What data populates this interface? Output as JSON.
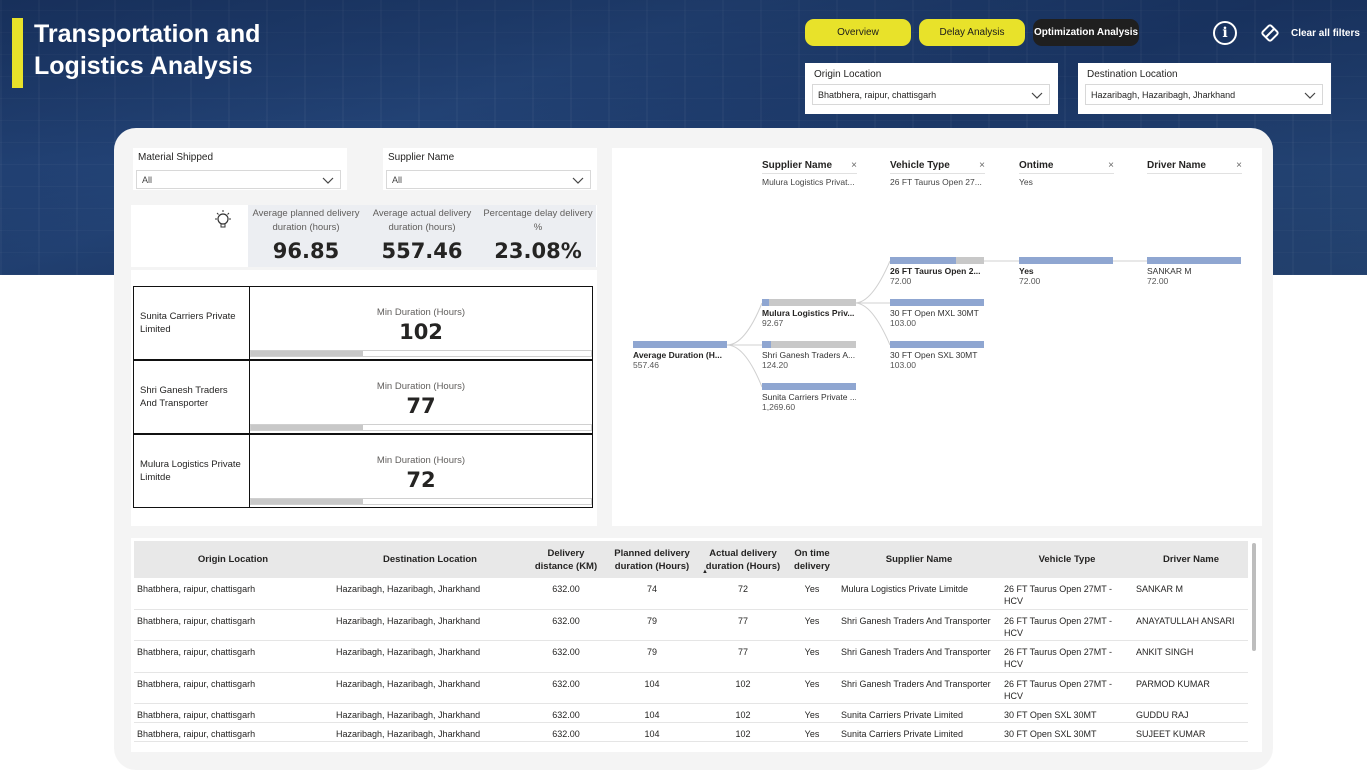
{
  "header": {
    "title_line1": "Transportation and",
    "title_line2": "Logistics Analysis",
    "nav": {
      "overview": "Overview",
      "delay": "Delay Analysis",
      "optimization": "Optimization Analysis"
    },
    "clear_filters": "Clear all filters",
    "accent_color": "#e8e22a"
  },
  "filters": {
    "origin": {
      "label": "Origin Location",
      "value": "Bhatbhera, raipur, chattisgarh"
    },
    "destination": {
      "label": "Destination Location",
      "value": "Hazaribagh, Hazaribagh, Jharkhand"
    },
    "material": {
      "label": "Material Shipped",
      "value": "All"
    },
    "supplier": {
      "label": "Supplier Name",
      "value": "All"
    }
  },
  "kpis": [
    {
      "label": "Average planned delivery duration (hours)",
      "value": "96.85"
    },
    {
      "label": "Average actual delivery duration (hours)",
      "value": "557.46"
    },
    {
      "label": "Percentage delay delivery %",
      "value": "23.08%"
    }
  ],
  "supplier_cards": {
    "metric_label": "Min Duration (Hours)",
    "items": [
      {
        "name": "Sunita Carriers Private Limited",
        "value": "102",
        "fill": 0.33
      },
      {
        "name": "Shri Ganesh Traders And Transporter",
        "value": "77",
        "fill": 0.33
      },
      {
        "name": "Mulura Logistics Private Limitde",
        "value": "72",
        "fill": 0.33
      }
    ]
  },
  "decomposition_tree": {
    "levels": [
      {
        "title": "Supplier Name",
        "selected": "Mulura Logistics Privat..."
      },
      {
        "title": "Vehicle Type",
        "selected": "26 FT Taurus Open 27..."
      },
      {
        "title": "Ontime",
        "selected": "Yes"
      },
      {
        "title": "Driver Name",
        "selected": ""
      }
    ],
    "root": {
      "label": "Average Duration (H...",
      "value": "557.46",
      "fill": 1.0
    },
    "suppliers": [
      {
        "label": "Mulura Logistics Priv...",
        "value": "92.67",
        "fill": 0.07
      },
      {
        "label": "Shri Ganesh Traders A...",
        "value": "124.20",
        "fill": 0.1
      },
      {
        "label": "Sunita Carriers Private ...",
        "value": "1,269.60",
        "fill": 1.0
      }
    ],
    "vehicles": [
      {
        "label": "26 FT Taurus Open 2...",
        "value": "72.00",
        "fill": 0.7
      },
      {
        "label": "30 FT Open MXL 30MT",
        "value": "103.00",
        "fill": 1.0
      },
      {
        "label": "30 FT Open SXL 30MT",
        "value": "103.00",
        "fill": 1.0
      }
    ],
    "ontime": [
      {
        "label": "Yes",
        "value": "72.00",
        "fill": 1.0
      }
    ],
    "drivers": [
      {
        "label": "SANKAR M",
        "value": "72.00",
        "fill": 1.0
      }
    ],
    "close_glyph": "×"
  },
  "table": {
    "columns": [
      "Origin Location",
      "Destination Location",
      "Delivery distance (KM)",
      "Planned delivery duration (Hours)",
      "Actual delivery duration (Hours)",
      "On time delivery",
      "Supplier Name",
      "Vehicle Type",
      "Driver Name"
    ],
    "rows": [
      [
        "Bhatbhera, raipur, chattisgarh",
        "Hazaribagh, Hazaribagh, Jharkhand",
        "632.00",
        "74",
        "72",
        "Yes",
        "Mulura Logistics Private Limitde",
        "26 FT Taurus Open 27MT - HCV",
        "SANKAR M"
      ],
      [
        "Bhatbhera, raipur, chattisgarh",
        "Hazaribagh, Hazaribagh, Jharkhand",
        "632.00",
        "79",
        "77",
        "Yes",
        "Shri Ganesh Traders And Transporter",
        "26 FT Taurus Open 27MT - HCV",
        "ANAYATULLAH ANSARI"
      ],
      [
        "Bhatbhera, raipur, chattisgarh",
        "Hazaribagh, Hazaribagh, Jharkhand",
        "632.00",
        "79",
        "77",
        "Yes",
        "Shri Ganesh Traders And Transporter",
        "26 FT Taurus Open 27MT - HCV",
        "ANKIT SINGH"
      ],
      [
        "Bhatbhera, raipur, chattisgarh",
        "Hazaribagh, Hazaribagh, Jharkhand",
        "632.00",
        "104",
        "102",
        "Yes",
        "Shri Ganesh Traders And Transporter",
        "26 FT Taurus Open 27MT - HCV",
        "PARMOD KUMAR"
      ],
      [
        "Bhatbhera, raipur, chattisgarh",
        "Hazaribagh, Hazaribagh, Jharkhand",
        "632.00",
        "104",
        "102",
        "Yes",
        "Sunita Carriers Private Limited",
        "30 FT Open SXL 30MT",
        "GUDDU RAJ"
      ],
      [
        "Bhatbhera, raipur, chattisgarh",
        "Hazaribagh, Hazaribagh, Jharkhand",
        "632.00",
        "104",
        "102",
        "Yes",
        "Sunita Carriers Private Limited",
        "30 FT Open SXL 30MT",
        "SUJEET KUMAR"
      ]
    ]
  }
}
